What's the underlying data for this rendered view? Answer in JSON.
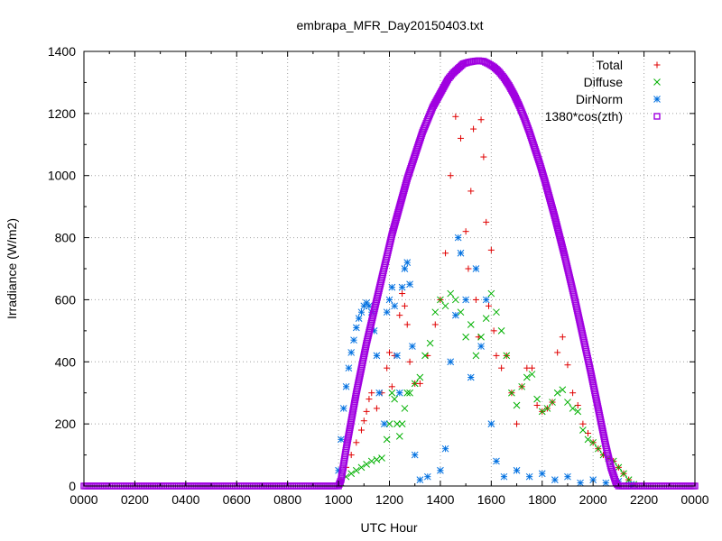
{
  "chart_data": {
    "type": "scatter",
    "title": "embrapa_MFR_Day20150403.txt",
    "xlabel": "UTC Hour",
    "ylabel": "Irradiance (W/m2)",
    "xlim": [
      0,
      24
    ],
    "ylim": [
      0,
      1400
    ],
    "x_tick_labels": [
      "0000",
      "0200",
      "0400",
      "0600",
      "0800",
      "1000",
      "1200",
      "1400",
      "1600",
      "1800",
      "2000",
      "2200",
      "0000"
    ],
    "y_ticks": [
      0,
      200,
      400,
      600,
      800,
      1000,
      1200,
      1400
    ],
    "grid": true,
    "legend_position": "top-right",
    "series": [
      {
        "name": "Total",
        "marker": "+",
        "color": "#e00000",
        "points": [
          [
            10.1,
            20
          ],
          [
            10.3,
            60
          ],
          [
            10.5,
            100
          ],
          [
            10.7,
            140
          ],
          [
            10.9,
            180
          ],
          [
            11.0,
            210
          ],
          [
            11.1,
            240
          ],
          [
            11.2,
            280
          ],
          [
            11.3,
            300
          ],
          [
            11.5,
            250
          ],
          [
            11.7,
            300
          ],
          [
            11.9,
            380
          ],
          [
            12.0,
            430
          ],
          [
            12.1,
            320
          ],
          [
            12.2,
            420
          ],
          [
            12.4,
            550
          ],
          [
            12.5,
            620
          ],
          [
            12.6,
            580
          ],
          [
            12.7,
            520
          ],
          [
            12.8,
            400
          ],
          [
            13.0,
            330
          ],
          [
            13.2,
            330
          ],
          [
            13.5,
            420
          ],
          [
            13.8,
            520
          ],
          [
            14.0,
            600
          ],
          [
            14.2,
            750
          ],
          [
            14.4,
            1000
          ],
          [
            14.6,
            1190
          ],
          [
            14.8,
            1120
          ],
          [
            15.0,
            820
          ],
          [
            15.1,
            700
          ],
          [
            15.2,
            950
          ],
          [
            15.3,
            1150
          ],
          [
            15.4,
            600
          ],
          [
            15.5,
            480
          ],
          [
            15.6,
            1180
          ],
          [
            15.7,
            1060
          ],
          [
            15.8,
            850
          ],
          [
            15.9,
            580
          ],
          [
            16.0,
            760
          ],
          [
            16.1,
            500
          ],
          [
            16.2,
            420
          ],
          [
            16.4,
            380
          ],
          [
            16.6,
            420
          ],
          [
            16.8,
            300
          ],
          [
            17.0,
            200
          ],
          [
            17.2,
            320
          ],
          [
            17.4,
            380
          ],
          [
            17.6,
            380
          ],
          [
            17.8,
            260
          ],
          [
            18.0,
            240
          ],
          [
            18.2,
            250
          ],
          [
            18.4,
            270
          ],
          [
            18.6,
            430
          ],
          [
            18.8,
            480
          ],
          [
            19.0,
            390
          ],
          [
            19.2,
            300
          ],
          [
            19.4,
            260
          ],
          [
            19.6,
            200
          ],
          [
            19.8,
            170
          ],
          [
            20.0,
            140
          ],
          [
            20.2,
            120
          ],
          [
            20.4,
            100
          ],
          [
            20.6,
            90
          ],
          [
            20.8,
            80
          ],
          [
            21.0,
            60
          ],
          [
            21.2,
            40
          ],
          [
            21.4,
            20
          ],
          [
            21.6,
            5
          ]
        ]
      },
      {
        "name": "Diffuse",
        "marker": "x",
        "color": "#00b000",
        "points": [
          [
            10.1,
            10
          ],
          [
            10.3,
            30
          ],
          [
            10.5,
            40
          ],
          [
            10.7,
            50
          ],
          [
            10.9,
            60
          ],
          [
            11.1,
            70
          ],
          [
            11.3,
            80
          ],
          [
            11.5,
            85
          ],
          [
            11.7,
            90
          ],
          [
            11.9,
            150
          ],
          [
            12.0,
            200
          ],
          [
            12.1,
            300
          ],
          [
            12.2,
            280
          ],
          [
            12.3,
            200
          ],
          [
            12.4,
            160
          ],
          [
            12.5,
            200
          ],
          [
            12.6,
            250
          ],
          [
            12.7,
            300
          ],
          [
            12.8,
            300
          ],
          [
            13.0,
            330
          ],
          [
            13.2,
            350
          ],
          [
            13.4,
            420
          ],
          [
            13.6,
            460
          ],
          [
            13.8,
            560
          ],
          [
            14.0,
            600
          ],
          [
            14.2,
            580
          ],
          [
            14.4,
            620
          ],
          [
            14.6,
            600
          ],
          [
            14.8,
            560
          ],
          [
            15.0,
            480
          ],
          [
            15.2,
            520
          ],
          [
            15.4,
            420
          ],
          [
            15.6,
            480
          ],
          [
            15.8,
            540
          ],
          [
            16.0,
            620
          ],
          [
            16.2,
            560
          ],
          [
            16.4,
            500
          ],
          [
            16.6,
            420
          ],
          [
            16.8,
            300
          ],
          [
            17.0,
            260
          ],
          [
            17.2,
            320
          ],
          [
            17.4,
            350
          ],
          [
            17.6,
            360
          ],
          [
            17.8,
            280
          ],
          [
            18.0,
            240
          ],
          [
            18.2,
            250
          ],
          [
            18.4,
            270
          ],
          [
            18.6,
            300
          ],
          [
            18.8,
            310
          ],
          [
            19.0,
            270
          ],
          [
            19.2,
            250
          ],
          [
            19.4,
            240
          ],
          [
            19.6,
            180
          ],
          [
            19.8,
            150
          ],
          [
            20.0,
            140
          ],
          [
            20.2,
            120
          ],
          [
            20.4,
            100
          ],
          [
            20.6,
            90
          ],
          [
            20.8,
            80
          ],
          [
            21.0,
            60
          ],
          [
            21.2,
            40
          ],
          [
            21.4,
            20
          ],
          [
            21.6,
            5
          ]
        ]
      },
      {
        "name": "DirNorm",
        "marker": "*",
        "color": "#0070e0",
        "points": [
          [
            10.0,
            50
          ],
          [
            10.1,
            150
          ],
          [
            10.2,
            250
          ],
          [
            10.3,
            320
          ],
          [
            10.4,
            380
          ],
          [
            10.5,
            430
          ],
          [
            10.6,
            470
          ],
          [
            10.7,
            510
          ],
          [
            10.8,
            540
          ],
          [
            10.9,
            560
          ],
          [
            11.0,
            580
          ],
          [
            11.1,
            590
          ],
          [
            11.2,
            580
          ],
          [
            11.3,
            560
          ],
          [
            11.4,
            500
          ],
          [
            11.5,
            420
          ],
          [
            11.6,
            300
          ],
          [
            11.8,
            200
          ],
          [
            11.9,
            560
          ],
          [
            12.0,
            600
          ],
          [
            12.1,
            640
          ],
          [
            12.2,
            580
          ],
          [
            12.3,
            420
          ],
          [
            12.4,
            300
          ],
          [
            12.5,
            640
          ],
          [
            12.6,
            700
          ],
          [
            12.7,
            720
          ],
          [
            12.8,
            650
          ],
          [
            12.9,
            450
          ],
          [
            13.0,
            100
          ],
          [
            13.2,
            20
          ],
          [
            13.5,
            30
          ],
          [
            14.0,
            50
          ],
          [
            14.2,
            120
          ],
          [
            14.4,
            400
          ],
          [
            14.6,
            550
          ],
          [
            14.7,
            800
          ],
          [
            14.8,
            750
          ],
          [
            15.0,
            600
          ],
          [
            15.2,
            350
          ],
          [
            15.4,
            700
          ],
          [
            15.6,
            450
          ],
          [
            15.8,
            600
          ],
          [
            16.0,
            200
          ],
          [
            16.2,
            80
          ],
          [
            16.5,
            30
          ],
          [
            17.0,
            50
          ],
          [
            17.5,
            30
          ],
          [
            18.0,
            40
          ],
          [
            18.5,
            20
          ],
          [
            19.0,
            30
          ],
          [
            19.5,
            10
          ],
          [
            20.0,
            20
          ],
          [
            20.5,
            10
          ],
          [
            21.0,
            15
          ],
          [
            21.5,
            5
          ]
        ]
      },
      {
        "name": "1380*cos(zth)",
        "marker": "square",
        "color": "#a000e0",
        "points": [
          [
            0,
            0
          ],
          [
            2,
            0
          ],
          [
            4,
            0
          ],
          [
            6,
            0
          ],
          [
            8,
            0
          ],
          [
            9,
            0
          ],
          [
            10,
            0
          ],
          [
            10.1,
            20
          ],
          [
            10.3,
            120
          ],
          [
            10.5,
            210
          ],
          [
            10.7,
            300
          ],
          [
            10.9,
            380
          ],
          [
            11.1,
            460
          ],
          [
            11.3,
            530
          ],
          [
            11.5,
            600
          ],
          [
            11.7,
            670
          ],
          [
            11.9,
            740
          ],
          [
            12.1,
            810
          ],
          [
            12.3,
            870
          ],
          [
            12.5,
            930
          ],
          [
            12.7,
            990
          ],
          [
            12.9,
            1040
          ],
          [
            13.1,
            1090
          ],
          [
            13.3,
            1140
          ],
          [
            13.5,
            1180
          ],
          [
            13.7,
            1220
          ],
          [
            13.9,
            1250
          ],
          [
            14.1,
            1280
          ],
          [
            14.3,
            1310
          ],
          [
            14.5,
            1330
          ],
          [
            14.7,
            1345
          ],
          [
            14.9,
            1360
          ],
          [
            15.1,
            1365
          ],
          [
            15.3,
            1368
          ],
          [
            15.5,
            1370
          ],
          [
            15.7,
            1368
          ],
          [
            15.9,
            1360
          ],
          [
            16.1,
            1350
          ],
          [
            16.3,
            1335
          ],
          [
            16.5,
            1315
          ],
          [
            16.7,
            1290
          ],
          [
            16.9,
            1260
          ],
          [
            17.1,
            1225
          ],
          [
            17.3,
            1185
          ],
          [
            17.5,
            1140
          ],
          [
            17.7,
            1090
          ],
          [
            17.9,
            1040
          ],
          [
            18.1,
            985
          ],
          [
            18.3,
            925
          ],
          [
            18.5,
            865
          ],
          [
            18.7,
            800
          ],
          [
            18.9,
            735
          ],
          [
            19.1,
            665
          ],
          [
            19.3,
            595
          ],
          [
            19.5,
            520
          ],
          [
            19.7,
            445
          ],
          [
            19.9,
            370
          ],
          [
            20.1,
            290
          ],
          [
            20.3,
            210
          ],
          [
            20.5,
            130
          ],
          [
            20.7,
            60
          ],
          [
            20.9,
            10
          ],
          [
            21.0,
            0
          ],
          [
            22,
            0
          ],
          [
            23,
            0
          ],
          [
            24,
            0
          ]
        ]
      }
    ]
  }
}
